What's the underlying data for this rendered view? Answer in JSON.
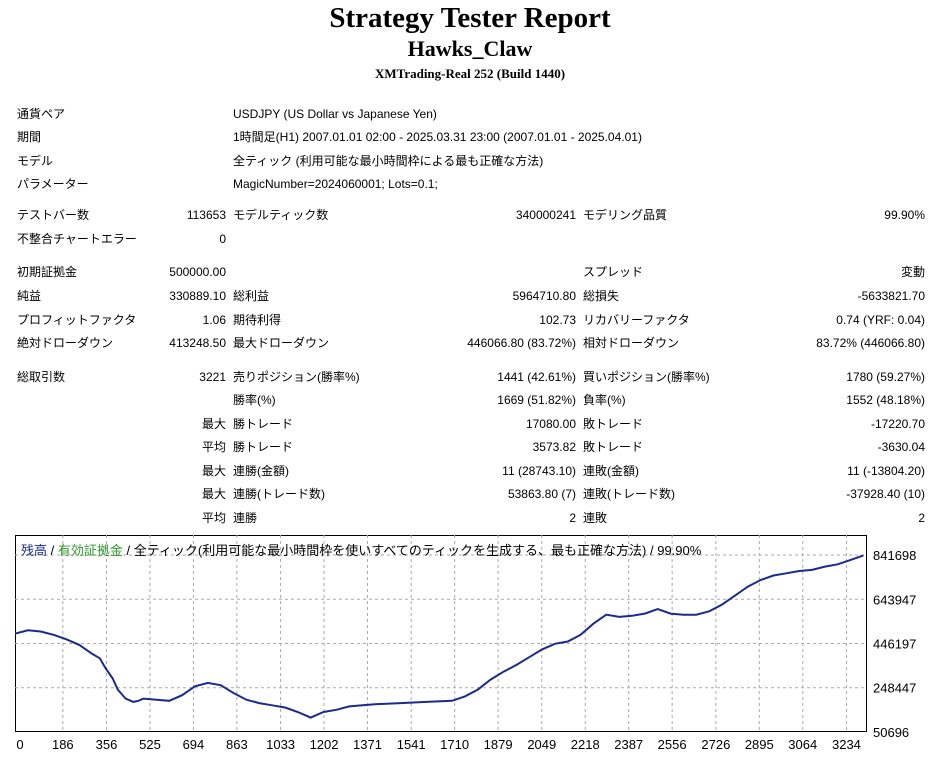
{
  "header": {
    "title": "Strategy Tester Report",
    "subtitle": "Hawks_Claw",
    "server": "XMTrading-Real 252 (Build 1440)"
  },
  "info": {
    "symbol_label": "通貨ペア",
    "symbol_value": "USDJPY (US Dollar vs Japanese Yen)",
    "period_label": "期間",
    "period_value": "1時間足(H1) 2007.01.01 02:00 - 2025.03.31 23:00 (2007.01.01 - 2025.04.01)",
    "model_label": "モデル",
    "model_value": "全ティック (利用可能な最小時間枠による最も正確な方法)",
    "params_label": "パラメーター",
    "params_value": "MagicNumber=2024060001; Lots=0.1;"
  },
  "stats": {
    "bars_label": "テストバー数",
    "bars_value": "113653",
    "ticks_label": "モデルティック数",
    "ticks_value": "340000241",
    "quality_label": "モデリング品質",
    "quality_value": "99.90%",
    "mismatch_label": "不整合チャートエラー",
    "mismatch_value": "0",
    "deposit_label": "初期証拠金",
    "deposit_value": "500000.00",
    "spread_label": "スプレッド",
    "spread_value": "変動",
    "net_label": "純益",
    "net_value": "330889.10",
    "gross_profit_label": "総利益",
    "gross_profit_value": "5964710.80",
    "gross_loss_label": "総損失",
    "gross_loss_value": "-5633821.70",
    "pf_label": "プロフィットファクタ",
    "pf_value": "1.06",
    "expected_label": "期待利得",
    "expected_value": "102.73",
    "recovery_label": "リカバリーファクタ",
    "recovery_value": "0.74 (YRF: 0.04)",
    "abs_dd_label": "絶対ドローダウン",
    "abs_dd_value": "413248.50",
    "max_dd_label": "最大ドローダウン",
    "max_dd_value": "446066.80 (83.72%)",
    "rel_dd_label": "相対ドローダウン",
    "rel_dd_value": "83.72% (446066.80)",
    "trades_label": "総取引数",
    "trades_value": "3221",
    "short_label": "売りポジション(勝率%)",
    "short_value": "1441 (42.61%)",
    "long_label": "買いポジション(勝率%)",
    "long_value": "1780 (59.27%)",
    "win_label": "勝率(%)",
    "win_value": "1669 (51.82%)",
    "loss_label": "負率(%)",
    "loss_value": "1552 (48.18%)",
    "max_word": "最大",
    "avg_word": "平均",
    "largest_win_label": "勝トレード",
    "largest_win_value": "17080.00",
    "largest_loss_label": "敗トレード",
    "largest_loss_value": "-17220.70",
    "avg_win_label": "勝トレード",
    "avg_win_value": "3573.82",
    "avg_loss_label": "敗トレード",
    "avg_loss_value": "-3630.04",
    "cons_wins_label": "連勝(金額)",
    "cons_wins_value": "11 (28743.10)",
    "cons_losses_label": "連敗(金額)",
    "cons_losses_value": "11 (-13804.20)",
    "cons_profit_label": "連勝(トレード数)",
    "cons_profit_value": "53863.80 (7)",
    "cons_loss_label": "連敗(トレード数)",
    "cons_loss_value": "-37928.40 (10)",
    "avg_cons_wins_label": "連勝",
    "avg_cons_wins_value": "2",
    "avg_cons_losses_label": "連敗",
    "avg_cons_losses_value": "2"
  },
  "legend": {
    "balance": "残高",
    "sep1": " / ",
    "equity": "有効証拠金",
    "rest": " / 全ティック(利用可能な最小時間枠を使いすべてのティックを生成する、最も正確な方法) / 99.90%"
  },
  "chart_data": {
    "type": "line",
    "title": "",
    "xlabel": "",
    "ylabel": "",
    "xlim": [
      0,
      3310
    ],
    "ylim": [
      50696,
      880000
    ],
    "x_ticks": [
      0,
      186,
      356,
      525,
      694,
      863,
      1033,
      1202,
      1371,
      1541,
      1710,
      1879,
      2049,
      2218,
      2387,
      2556,
      2726,
      2895,
      3064,
      3234
    ],
    "y_ticks": [
      841698,
      643947,
      446197,
      248447,
      50696
    ],
    "grid": true,
    "colors": {
      "balance": "#1c2a8c",
      "grid": "#aaaaaa"
    },
    "series": [
      {
        "name": "残高",
        "x": [
          0,
          50,
          100,
          150,
          200,
          250,
          300,
          330,
          350,
          380,
          400,
          430,
          460,
          480,
          500,
          550,
          600,
          650,
          700,
          750,
          800,
          850,
          900,
          950,
          1000,
          1050,
          1100,
          1150,
          1200,
          1250,
          1300,
          1400,
          1500,
          1600,
          1700,
          1750,
          1800,
          1850,
          1900,
          1950,
          2000,
          2050,
          2100,
          2150,
          2200,
          2250,
          2300,
          2350,
          2400,
          2450,
          2500,
          2550,
          2600,
          2650,
          2700,
          2750,
          2800,
          2850,
          2900,
          2950,
          3000,
          3050,
          3100,
          3150,
          3200,
          3250,
          3300
        ],
        "y": [
          490000,
          505000,
          500000,
          485000,
          465000,
          440000,
          400000,
          380000,
          340000,
          290000,
          240000,
          200000,
          185000,
          190000,
          200000,
          195000,
          190000,
          215000,
          255000,
          270000,
          260000,
          225000,
          195000,
          180000,
          170000,
          160000,
          140000,
          115000,
          140000,
          150000,
          165000,
          175000,
          180000,
          185000,
          190000,
          210000,
          240000,
          285000,
          320000,
          350000,
          385000,
          420000,
          445000,
          455000,
          485000,
          535000,
          575000,
          565000,
          570000,
          580000,
          600000,
          580000,
          575000,
          575000,
          590000,
          620000,
          660000,
          700000,
          730000,
          750000,
          760000,
          770000,
          775000,
          790000,
          800000,
          820000,
          840000
        ]
      }
    ]
  }
}
